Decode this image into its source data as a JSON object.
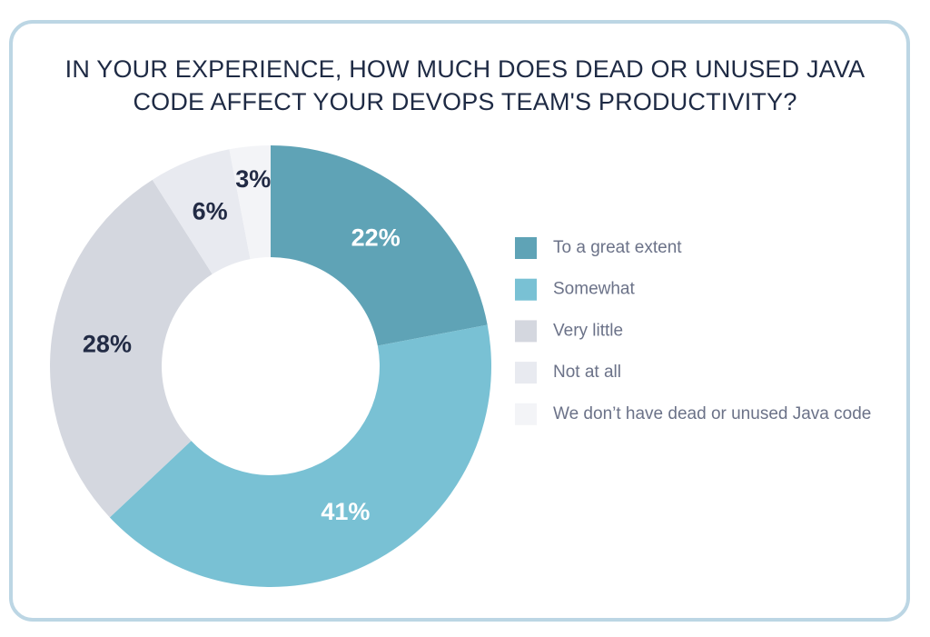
{
  "chart_data": {
    "type": "donut",
    "title": "IN YOUR EXPERIENCE, HOW MUCH DOES DEAD OR UNUSED JAVA CODE AFFECT YOUR DEVOPS TEAM'S PRODUCTIVITY?",
    "categories": [
      "To a great extent",
      "Somewhat",
      "Very little",
      "Not at all",
      "We don’t have dead or unused Java code"
    ],
    "values": [
      22,
      41,
      28,
      6,
      3
    ],
    "value_labels": [
      "22%",
      "41%",
      "28%",
      "6%",
      "3%"
    ],
    "colors": [
      "#5fa3b6",
      "#79c1d4",
      "#d4d7df",
      "#e8eaf0",
      "#f3f4f7"
    ],
    "legend": "right"
  }
}
